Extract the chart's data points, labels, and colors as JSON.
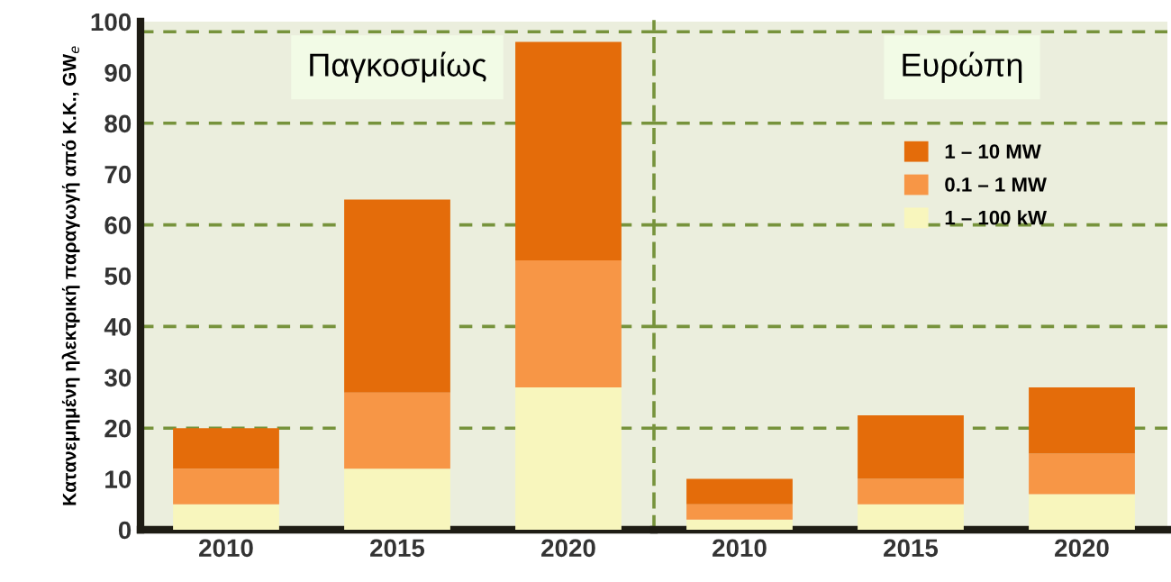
{
  "chart_data": [
    {
      "type": "bar",
      "title": "Παγκοσμίως",
      "ylabel": "Κατανεμημένη ηλεκτρική παραγωγή από Κ.Κ., GW$_{e}$",
      "stacked": true,
      "categories": [
        "2010",
        "2015",
        "2020"
      ],
      "series": [
        {
          "color": "#f8f6bd",
          "values": [
            5,
            12,
            28
          ]
        },
        {
          "color": "#f79646",
          "values": [
            7,
            15,
            25
          ]
        },
        {
          "color": "#e46c0a",
          "values": [
            8,
            38,
            43
          ]
        }
      ],
      "ylim": [
        0,
        100
      ],
      "yticks": [
        0,
        10,
        20,
        30,
        40,
        50,
        60,
        70,
        80,
        90,
        100
      ],
      "ref_lines": [
        {
          "axis": "y",
          "value": 20,
          "color": "#77933c",
          "line_style": "dashed"
        },
        {
          "axis": "y",
          "value": 40,
          "color": "#77933c",
          "line_style": "dashed"
        },
        {
          "axis": "y",
          "value": 60,
          "color": "#77933c",
          "line_style": "dashed"
        },
        {
          "axis": "y",
          "value": 80,
          "color": "#77933c",
          "line_style": "dashed"
        },
        {
          "axis": "y",
          "value": 98,
          "color": "#77933c",
          "line_style": "dashed"
        }
      ]
    },
    {
      "type": "bar",
      "title": "Ευρώπη",
      "stacked": true,
      "categories": [
        "2010",
        "2015",
        "2020"
      ],
      "series": [
        {
          "name": "1 – 100 kW",
          "color": "#f8f6bd",
          "values": [
            2,
            5,
            7
          ]
        },
        {
          "name": "0.1 – 1 MW",
          "color": "#f79646",
          "values": [
            3,
            5,
            8
          ]
        },
        {
          "name": "1 – 10 MW",
          "color": "#e46c0a",
          "values": [
            5,
            12.5,
            13
          ]
        }
      ],
      "ylim": [
        0,
        100
      ],
      "tick_labels": "x",
      "legend": "top right",
      "ref_lines": [
        {
          "axis": "y",
          "value": 20,
          "color": "#77933c",
          "line_style": "dashed"
        },
        {
          "axis": "y",
          "value": 40,
          "color": "#77933c",
          "line_style": "dashed"
        },
        {
          "axis": "y",
          "value": 60,
          "color": "#77933c",
          "line_style": "dashed"
        },
        {
          "axis": "y",
          "value": 80,
          "color": "#77933c",
          "line_style": "dashed"
        },
        {
          "axis": "y",
          "value": 98,
          "color": "#77933c",
          "line_style": "dashed"
        }
      ]
    }
  ]
}
